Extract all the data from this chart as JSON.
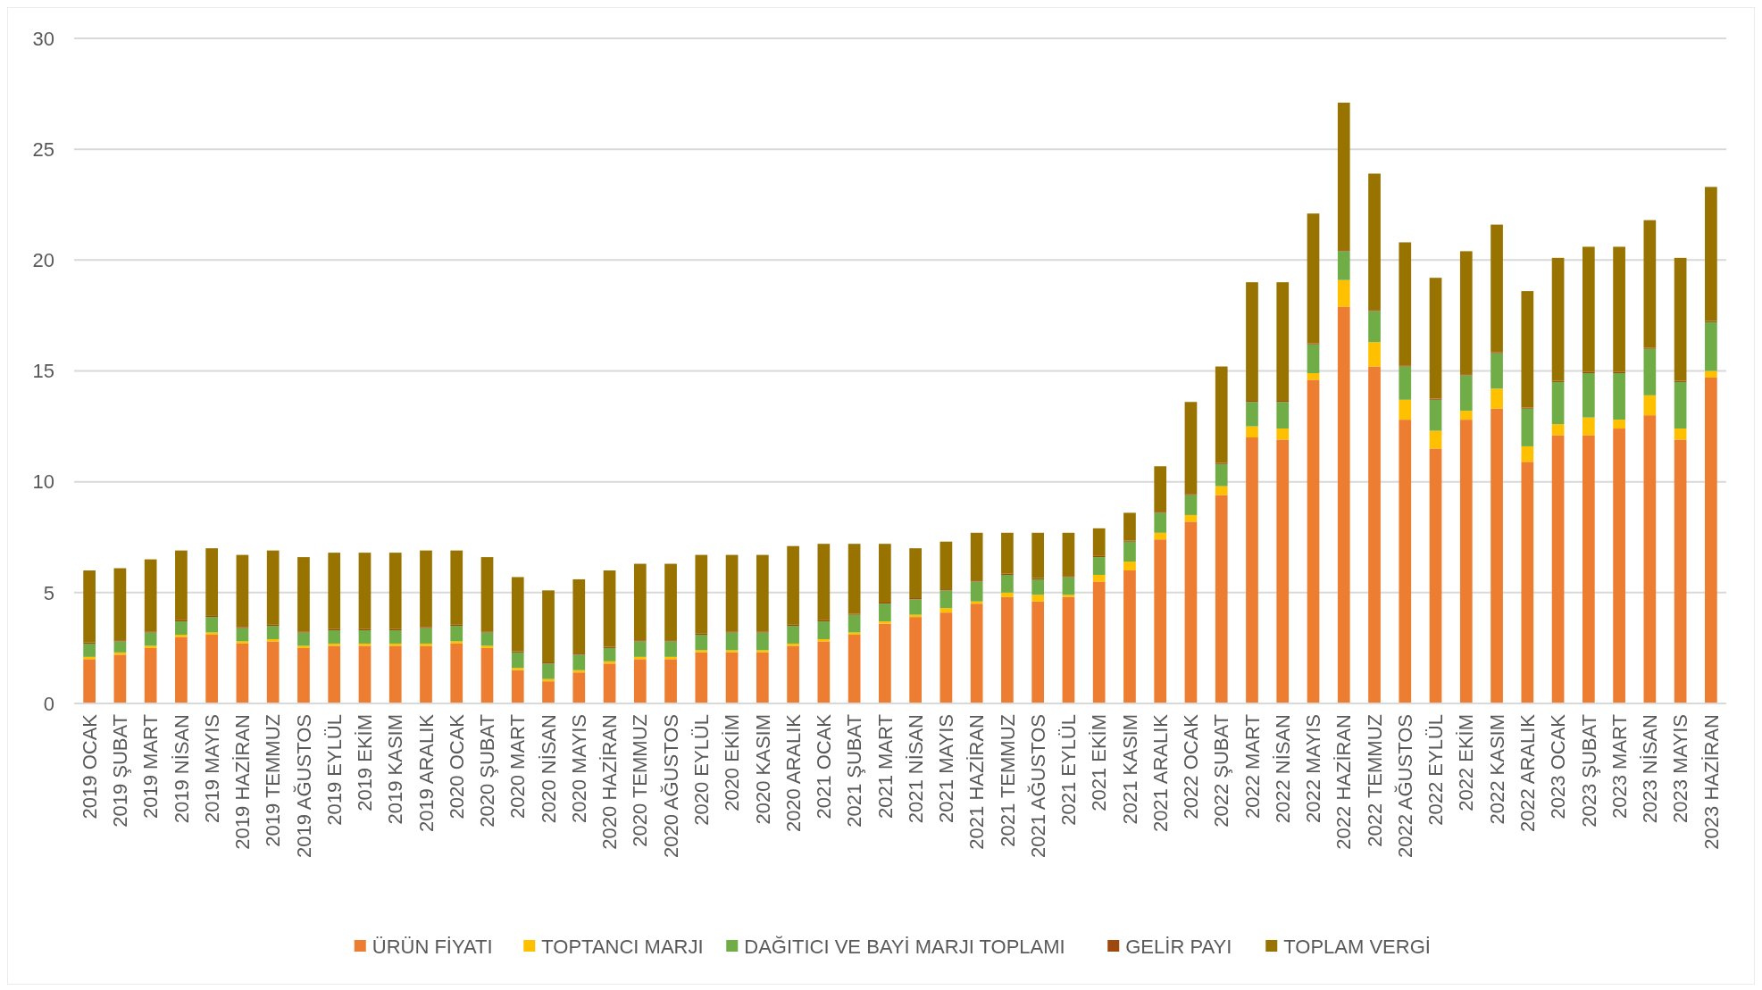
{
  "chart_data": {
    "type": "bar",
    "stacked": true,
    "legend": "bottom",
    "grid": "y",
    "categories": [
      "2019 OCAK",
      "2019 ŞUBAT",
      "2019 MART",
      "2019 NİSAN",
      "2019 MAYIS",
      "2019 HAZİRAN",
      "2019 TEMMUZ",
      "2019 AĞUSTOS",
      "2019 EYLÜL",
      "2019 EKİM",
      "2019 KASIM",
      "2019 ARALIK",
      "2020 OCAK",
      "2020 ŞUBAT",
      "2020 MART",
      "2020 NİSAN",
      "2020 MAYIS",
      "2020 HAZİRAN",
      "2020 TEMMUZ",
      "2020 AĞUSTOS",
      "2020 EYLÜL",
      "2020 EKİM",
      "2020 KASIM",
      "2020 ARALIK",
      "2021 OCAK",
      "2021 ŞUBAT",
      "2021 MART",
      "2021 NİSAN",
      "2021 MAYIS",
      "2021 HAZİRAN",
      "2021 TEMMUZ",
      "2021 AĞUSTOS",
      "2021 EYLÜL",
      "2021 EKİM",
      "2021 KASIM",
      "2021 ARALIK",
      "2022 OCAK",
      "2022 ŞUBAT",
      "2022 MART",
      "2022 NİSAN",
      "2022 MAYIS",
      "2022 HAZİRAN",
      "2022 TEMMUZ",
      "2022 AĞUSTOS",
      "2022 EYLÜL",
      "2022 EKİM",
      "2022 KASIM",
      "2022 ARALIK",
      "2023 OCAK",
      "2023 ŞUBAT",
      "2023 MART",
      "2023 NİSAN",
      "2023 MAYIS",
      "2023 HAZİRAN"
    ],
    "ylim": [
      0,
      30
    ],
    "yticks": [
      0,
      5,
      10,
      15,
      20,
      25,
      30
    ],
    "series": [
      {
        "name": "ÜRÜN FİYATI",
        "color": "#ed7d31",
        "values": [
          2.0,
          2.2,
          2.5,
          3.0,
          3.1,
          2.7,
          2.8,
          2.5,
          2.6,
          2.6,
          2.6,
          2.6,
          2.7,
          2.5,
          1.5,
          1.0,
          1.4,
          1.8,
          2.0,
          2.0,
          2.3,
          2.3,
          2.3,
          2.6,
          2.8,
          3.1,
          3.6,
          3.9,
          4.1,
          4.5,
          4.8,
          4.6,
          4.8,
          5.5,
          6.0,
          7.4,
          8.2,
          9.4,
          12.0,
          11.9,
          14.6,
          17.9,
          15.2,
          12.8,
          11.5,
          12.8,
          13.3,
          10.9,
          12.1,
          12.1,
          12.4,
          13.0,
          11.9,
          14.7
        ]
      },
      {
        "name": "TOPTANCI MARJI",
        "color": "#ffc000",
        "values": [
          0.1,
          0.1,
          0.1,
          0.1,
          0.1,
          0.1,
          0.1,
          0.1,
          0.1,
          0.1,
          0.1,
          0.1,
          0.1,
          0.1,
          0.1,
          0.1,
          0.1,
          0.1,
          0.1,
          0.1,
          0.1,
          0.1,
          0.1,
          0.1,
          0.1,
          0.1,
          0.1,
          0.1,
          0.2,
          0.1,
          0.2,
          0.3,
          0.1,
          0.3,
          0.4,
          0.3,
          0.3,
          0.4,
          0.5,
          0.5,
          0.3,
          1.2,
          1.1,
          0.9,
          0.8,
          0.4,
          0.9,
          0.7,
          0.5,
          0.8,
          0.4,
          0.9,
          0.5,
          0.3
        ]
      },
      {
        "name": "DAĞITICI VE BAYİ MARJI TOPLAMI",
        "color": "#70ad47",
        "values": [
          0.6,
          0.5,
          0.6,
          0.6,
          0.7,
          0.6,
          0.6,
          0.6,
          0.6,
          0.6,
          0.6,
          0.7,
          0.7,
          0.6,
          0.7,
          0.7,
          0.7,
          0.6,
          0.7,
          0.7,
          0.7,
          0.8,
          0.8,
          0.8,
          0.8,
          0.8,
          0.8,
          0.7,
          0.8,
          0.9,
          0.8,
          0.7,
          0.8,
          0.8,
          0.9,
          0.9,
          0.9,
          1.0,
          1.1,
          1.2,
          1.3,
          1.3,
          1.4,
          1.5,
          1.4,
          1.6,
          1.6,
          1.7,
          1.9,
          2.0,
          2.1,
          2.1,
          2.1,
          2.2
        ]
      },
      {
        "name": "GELİR PAYI",
        "color": "#9e480e",
        "values": [
          0.05,
          0.05,
          0.05,
          0.05,
          0.05,
          0.05,
          0.05,
          0.05,
          0.05,
          0.05,
          0.05,
          0.05,
          0.05,
          0.05,
          0.05,
          0.05,
          0.05,
          0.05,
          0.05,
          0.05,
          0.05,
          0.05,
          0.05,
          0.05,
          0.05,
          0.05,
          0.05,
          0.05,
          0.05,
          0.05,
          0.05,
          0.05,
          0.05,
          0.05,
          0.05,
          0.05,
          0.05,
          0.05,
          0.05,
          0.05,
          0.05,
          0.05,
          0.05,
          0.05,
          0.05,
          0.05,
          0.05,
          0.05,
          0.05,
          0.05,
          0.05,
          0.05,
          0.05,
          0.05
        ]
      },
      {
        "name": "TOPLAM VERGİ",
        "color": "#997300",
        "values": [
          3.25,
          3.25,
          3.25,
          3.15,
          3.05,
          3.25,
          3.35,
          3.35,
          3.45,
          3.45,
          3.45,
          3.45,
          3.35,
          3.35,
          3.35,
          3.25,
          3.35,
          3.45,
          3.45,
          3.45,
          3.55,
          3.45,
          3.45,
          3.55,
          3.45,
          3.15,
          2.65,
          2.25,
          2.15,
          2.15,
          1.85,
          2.05,
          1.95,
          1.25,
          1.25,
          2.05,
          4.15,
          4.35,
          5.35,
          5.35,
          5.85,
          6.65,
          6.15,
          5.55,
          5.45,
          5.55,
          5.75,
          5.25,
          5.55,
          5.65,
          5.65,
          5.75,
          5.55,
          6.05
        ]
      }
    ]
  }
}
